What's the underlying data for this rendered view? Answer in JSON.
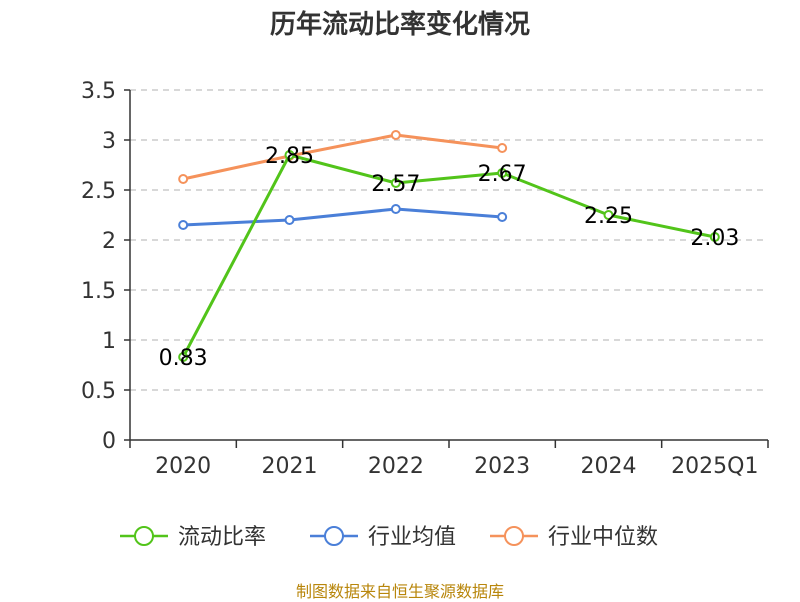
{
  "title": "历年流动比率变化情况",
  "source": "制图数据来自恒生聚源数据库",
  "chart_data": {
    "type": "line",
    "categories": [
      "2020",
      "2021",
      "2022",
      "2023",
      "2024",
      "2025Q1"
    ],
    "ylim": [
      0,
      3.5
    ],
    "yticks": [
      0,
      0.5,
      1,
      1.5,
      2,
      2.5,
      3,
      3.5
    ],
    "ytick_labels": [
      "0",
      "0.5",
      "1",
      "1.5",
      "2",
      "2.5",
      "3",
      "3.5"
    ],
    "grid": "horizontal-dashed",
    "legend_position": "bottom-center",
    "series": [
      {
        "name": "流动比率",
        "color": "#52c41a",
        "values": [
          0.83,
          2.85,
          2.57,
          2.67,
          2.25,
          2.03
        ],
        "labels": [
          "0.83",
          "2.85",
          "2.57",
          "2.67",
          "2.25",
          "2.03"
        ]
      },
      {
        "name": "行业均值",
        "color": "#4a7fd8",
        "values": [
          2.15,
          2.2,
          2.31,
          2.23,
          null,
          null
        ]
      },
      {
        "name": "行业中位数",
        "color": "#f5925b",
        "values": [
          2.61,
          2.84,
          3.05,
          2.92,
          null,
          null
        ]
      }
    ]
  }
}
